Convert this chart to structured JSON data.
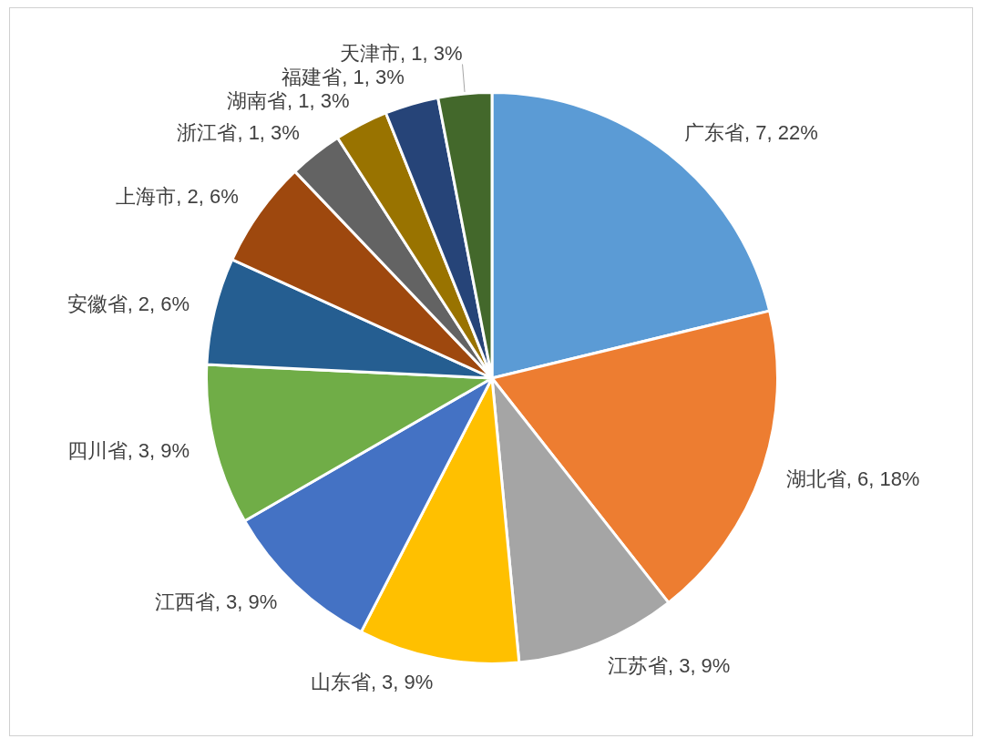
{
  "chart_data": {
    "type": "pie",
    "categories": [
      "广东省",
      "湖北省",
      "江苏省",
      "山东省",
      "江西省",
      "四川省",
      "安徽省",
      "上海市",
      "浙江省",
      "湖南省",
      "福建省",
      "天津市"
    ],
    "values": [
      7,
      6,
      3,
      3,
      3,
      3,
      2,
      2,
      1,
      1,
      1,
      1
    ],
    "value_labels": [
      "7, 22%",
      "6, 18%",
      "3, 9%",
      "3, 9%",
      "3, 9%",
      "3, 9%",
      "2, 6%",
      "2, 6%",
      "1, 3%",
      "1, 3%",
      "1, 3%",
      "1, 3%"
    ],
    "colors": [
      "#5b9bd5",
      "#ed7d31",
      "#a5a5a5",
      "#ffc000",
      "#4472c4",
      "#70ad47",
      "#255e91",
      "#9e480e",
      "#636363",
      "#997300",
      "#264478",
      "#43682b"
    ],
    "legend": false
  }
}
